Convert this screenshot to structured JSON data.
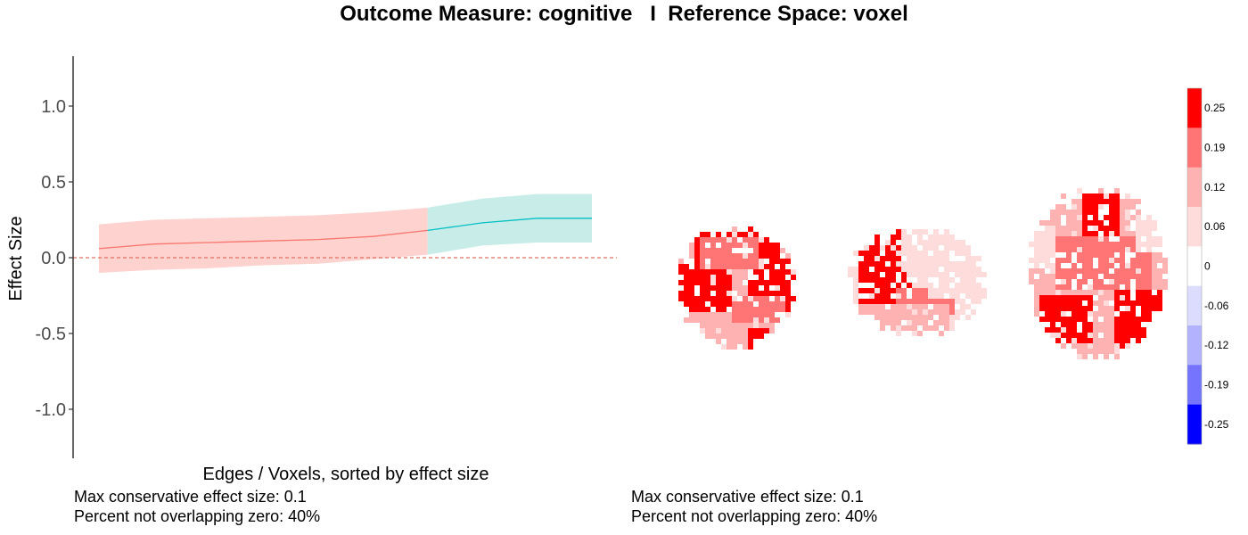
{
  "title": "Outcome Measure: cognitive   I  Reference Space: voxel",
  "captions": {
    "left": {
      "max_effect": "Max conservative effect size: 0.1",
      "percent": "Percent not overlapping zero: 40%"
    },
    "right": {
      "max_effect": "Max conservative effect size: 0.1",
      "percent": "Percent not overlapping zero: 40%"
    }
  },
  "chart_data": [
    {
      "type": "line",
      "xlabel": "Edges / Voxels, sorted by effect size",
      "ylabel": "Effect Size",
      "ylim": [
        -1.3,
        1.3
      ],
      "yticks": [
        1.0,
        0.5,
        0.0,
        -0.5,
        -1.0
      ],
      "ytick_labels": [
        "1.0",
        "0.5",
        "0.0",
        "-0.5",
        "-1.0"
      ],
      "x_tick_labels_shown": false,
      "reference_line": {
        "y": 0.0,
        "style": "dashed",
        "color": "#e07060"
      },
      "x": [
        1,
        2,
        3,
        4,
        5,
        6,
        7,
        8,
        9,
        10
      ],
      "estimate": [
        0.06,
        0.09,
        0.1,
        0.11,
        0.12,
        0.14,
        0.18,
        0.23,
        0.26,
        0.26
      ],
      "lower": [
        -0.1,
        -0.08,
        -0.07,
        -0.05,
        -0.04,
        -0.01,
        0.02,
        0.08,
        0.1,
        0.1
      ],
      "upper": [
        0.22,
        0.25,
        0.26,
        0.27,
        0.28,
        0.3,
        0.33,
        0.39,
        0.42,
        0.42
      ],
      "series": [
        {
          "x_range": [
            1,
            7
          ],
          "line_color": "#f8766d",
          "band_color": "#fdd2cf"
        },
        {
          "x_range": [
            7,
            10
          ],
          "line_color": "#00bfc4",
          "band_color": "#c8ede9"
        }
      ],
      "grid": false,
      "legend": "none"
    },
    {
      "type": "heatmap",
      "views": [
        "coronal",
        "sagittal",
        "axial"
      ],
      "colorbar": {
        "position": "right",
        "ticks": [
          0.25,
          0.19,
          0.12,
          0.06,
          0,
          -0.06,
          -0.12,
          -0.19,
          -0.25
        ],
        "tick_labels": [
          "0.25",
          "0.19",
          "0.12",
          "0.06",
          "0",
          "-0.06",
          "-0.12",
          "-0.19",
          "-0.25"
        ],
        "colors": [
          "#ff0000",
          "#ff7474",
          "#ffb2b2",
          "#ffdcdc",
          "#ffffff",
          "#dcdcff",
          "#b2b2ff",
          "#7474ff",
          "#0000ff"
        ]
      }
    }
  ]
}
